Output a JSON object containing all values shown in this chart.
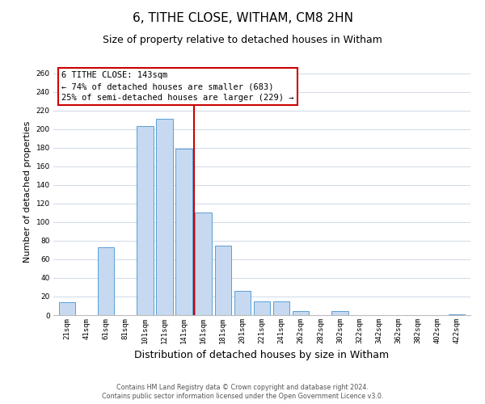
{
  "title": "6, TITHE CLOSE, WITHAM, CM8 2HN",
  "subtitle": "Size of property relative to detached houses in Witham",
  "xlabel": "Distribution of detached houses by size in Witham",
  "ylabel": "Number of detached properties",
  "bar_labels": [
    "21sqm",
    "41sqm",
    "61sqm",
    "81sqm",
    "101sqm",
    "121sqm",
    "141sqm",
    "161sqm",
    "181sqm",
    "201sqm",
    "221sqm",
    "241sqm",
    "262sqm",
    "282sqm",
    "302sqm",
    "322sqm",
    "342sqm",
    "362sqm",
    "382sqm",
    "402sqm",
    "422sqm"
  ],
  "bar_values": [
    14,
    0,
    73,
    0,
    203,
    211,
    179,
    110,
    75,
    26,
    15,
    15,
    4,
    0,
    4,
    0,
    0,
    0,
    0,
    0,
    1
  ],
  "bar_color": "#c6d9f0",
  "bar_edge_color": "#5a9fd4",
  "vline_x": 6,
  "vline_color": "#cc0000",
  "ylim": [
    0,
    265
  ],
  "yticks": [
    0,
    20,
    40,
    60,
    80,
    100,
    120,
    140,
    160,
    180,
    200,
    220,
    240,
    260
  ],
  "annotation_box_text": "6 TITHE CLOSE: 143sqm\n← 74% of detached houses are smaller (683)\n25% of semi-detached houses are larger (229) →",
  "annotation_box_color": "#cc0000",
  "annotation_box_fill": "#ffffff",
  "footer_line1": "Contains HM Land Registry data © Crown copyright and database right 2024.",
  "footer_line2": "Contains public sector information licensed under the Open Government Licence v3.0.",
  "bg_color": "#ffffff",
  "grid_color": "#d0d8e8",
  "title_fontsize": 11,
  "subtitle_fontsize": 9,
  "tick_fontsize": 6.5,
  "ylabel_fontsize": 8,
  "xlabel_fontsize": 9,
  "footer_fontsize": 5.8,
  "ann_fontsize": 7.5
}
